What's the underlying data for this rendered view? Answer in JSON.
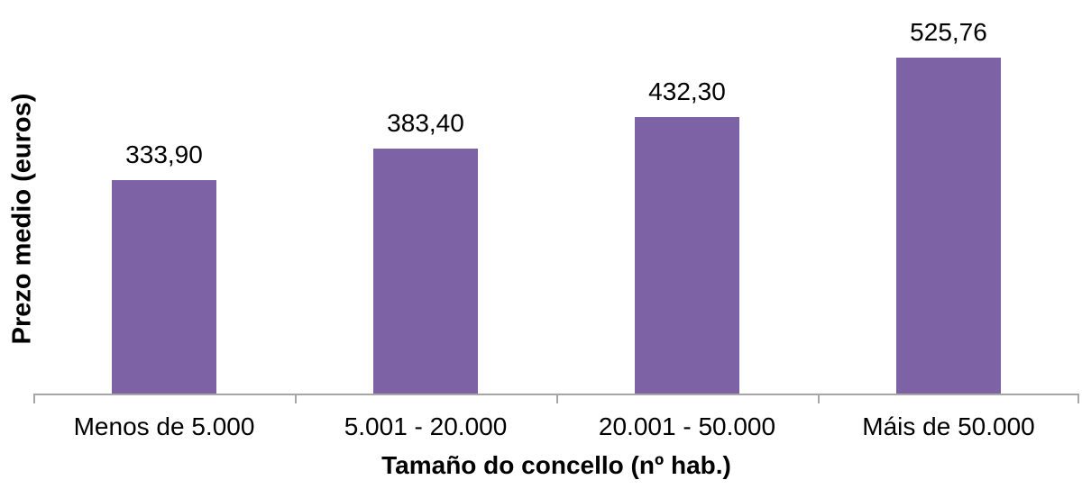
{
  "chart_data": {
    "type": "bar",
    "categories": [
      "Menos de 5.000",
      "5.001 - 20.000",
      "20.001 - 50.000",
      "Máis de 50.000"
    ],
    "values": [
      333.9,
      383.4,
      432.3,
      525.76
    ],
    "value_labels": [
      "333,90",
      "383,40",
      "432,30",
      "525,76"
    ],
    "title": "",
    "xlabel": "Tamaño do concello (nº hab.)",
    "ylabel": "Prezo medio (euros)",
    "ylim": [
      0,
      615
    ],
    "grid": false,
    "legend": "none",
    "bar_color": "#7D63A6",
    "axis_color": "#A6A6A6",
    "text_color": "#000000"
  }
}
